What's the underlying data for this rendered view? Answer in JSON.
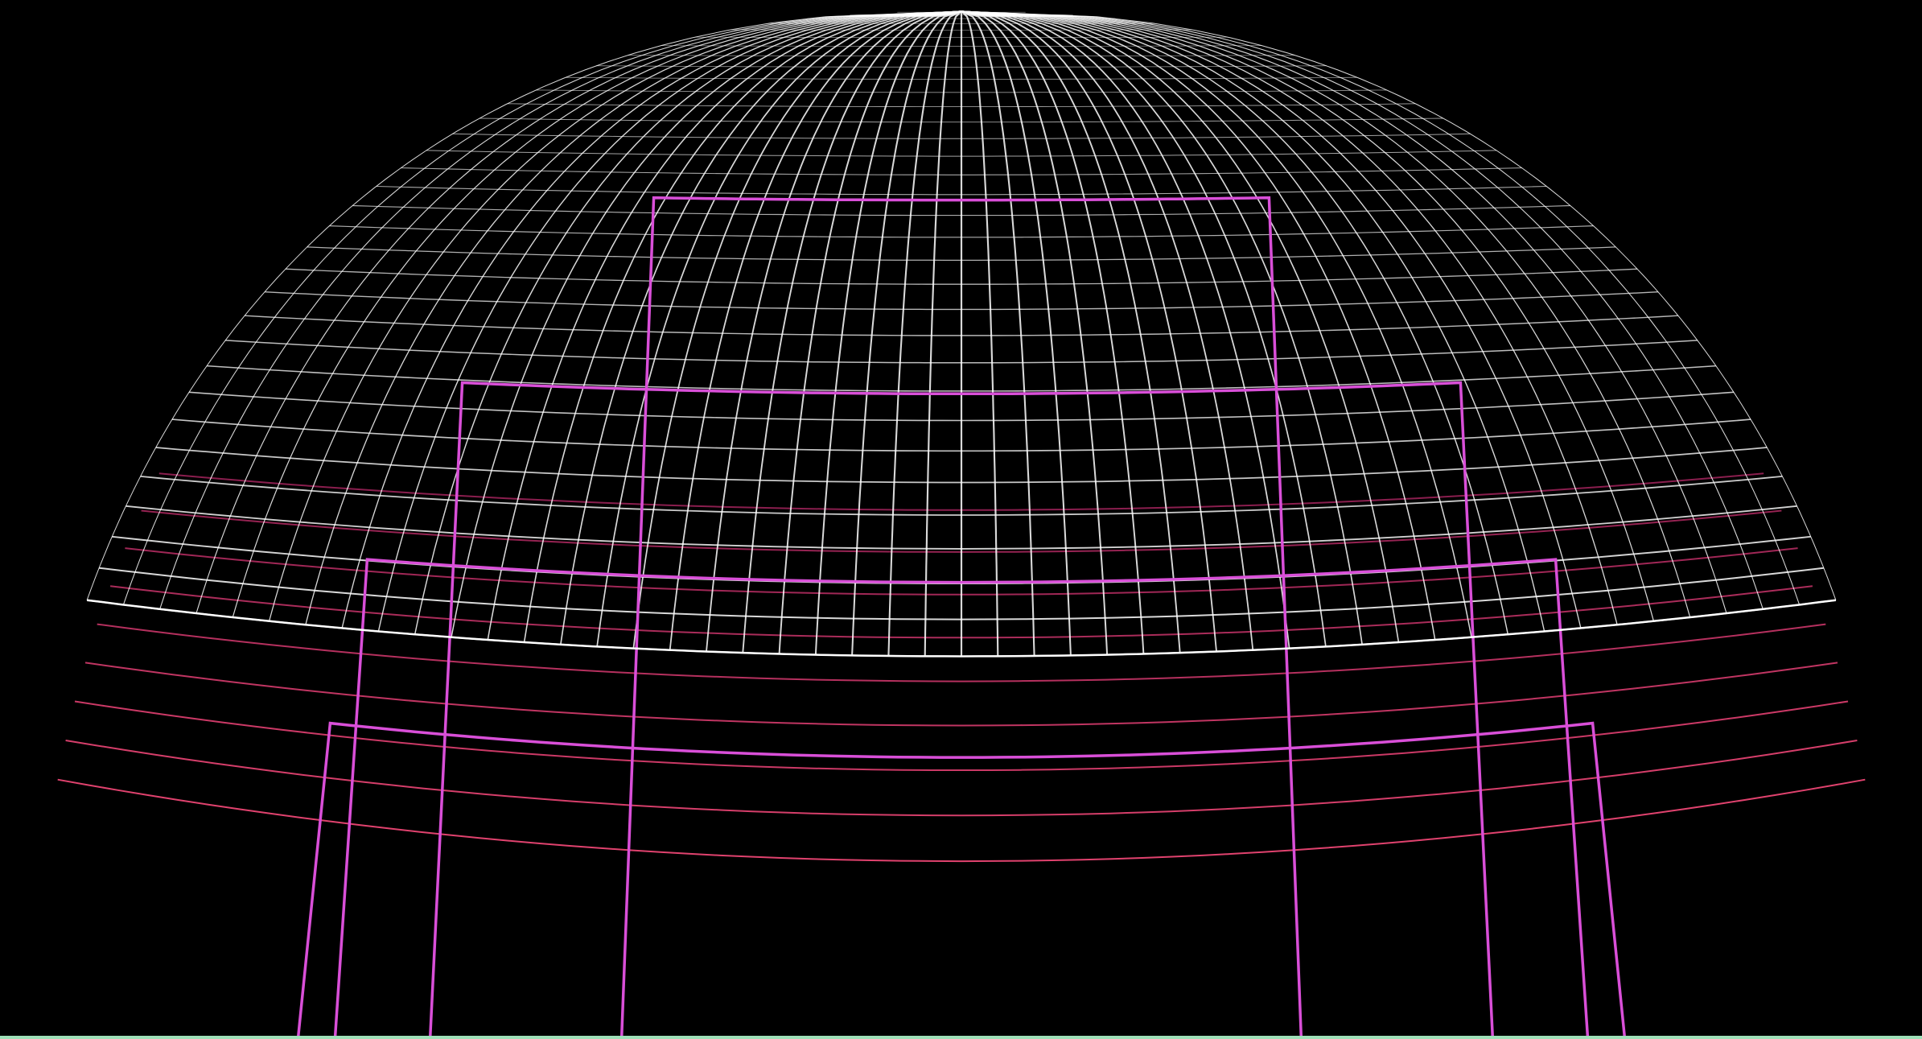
{
  "scene": {
    "background_color": "#000000",
    "grid_color": "#ffffff",
    "highlight_color": "#d94fd8",
    "trail_color_start": "#8a1e4e",
    "trail_color_end": "#e0426e",
    "edge_color": "#9fe0b8",
    "longitude_lines": 49,
    "latitude_rings": 33,
    "highlight_bands": 4,
    "trail_lines": 9
  }
}
